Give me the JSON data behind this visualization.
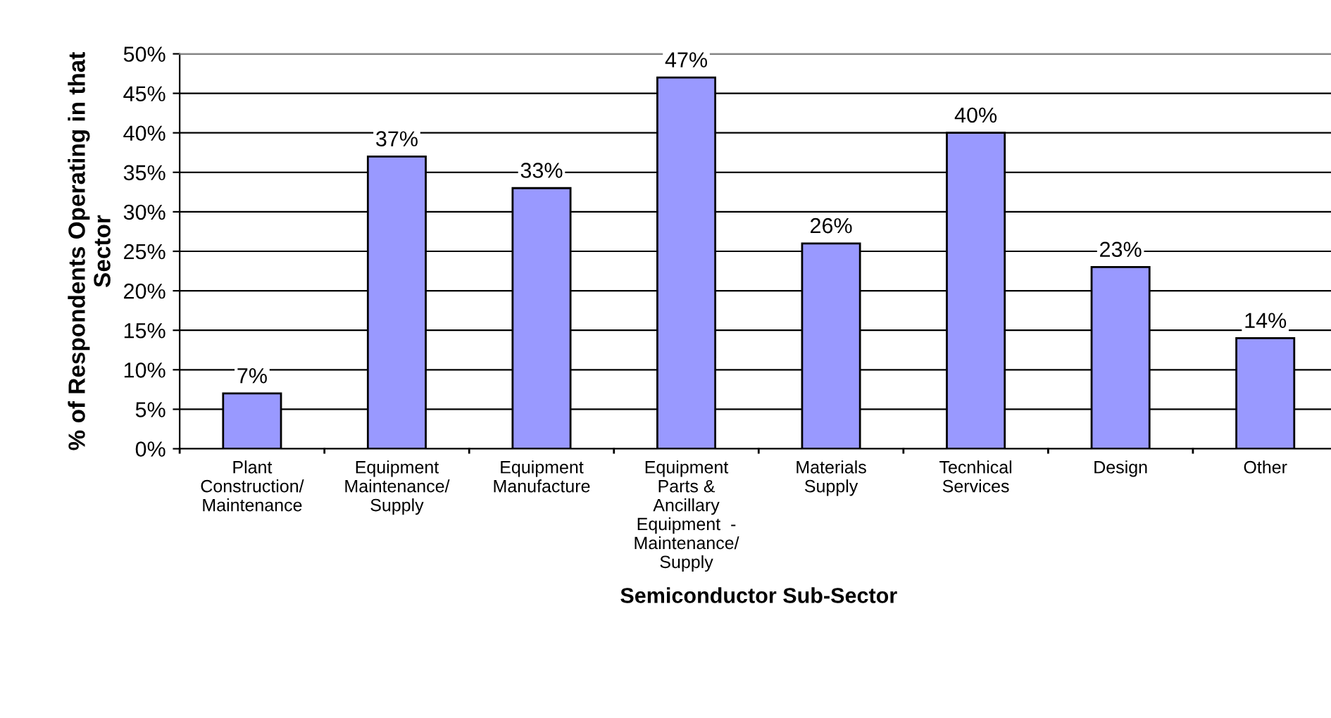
{
  "chart_data": {
    "type": "bar",
    "xlabel": "Semiconductor Sub-Sector",
    "ylabel": "% of Respondents Operating in that\nSector",
    "categories": [
      "Plant\nConstruction/\nMaintenance",
      "Equipment\nMaintenance/\nSupply",
      "Equipment\nManufacture",
      "Equipment\nParts &\nAncillary\nEquipment  -\nMaintenance/\nSupply",
      "Materials\nSupply",
      "Tecnhical\nServices",
      "Design",
      "Other"
    ],
    "values": [
      7,
      37,
      33,
      47,
      26,
      40,
      23,
      14
    ],
    "value_labels": [
      "7%",
      "37%",
      "33%",
      "47%",
      "26%",
      "40%",
      "23%",
      "14%"
    ],
    "color": "#9999ff",
    "ylim": [
      0,
      50
    ],
    "yticks": [
      {
        "value": 0,
        "label": "0%"
      },
      {
        "value": 5,
        "label": "5%"
      },
      {
        "value": 10,
        "label": "10%"
      },
      {
        "value": 15,
        "label": "15%"
      },
      {
        "value": 20,
        "label": "20%"
      },
      {
        "value": 25,
        "label": "25%"
      },
      {
        "value": 30,
        "label": "30%"
      },
      {
        "value": 35,
        "label": "35%"
      },
      {
        "value": 40,
        "label": "40%"
      },
      {
        "value": 45,
        "label": "45%"
      },
      {
        "value": 50,
        "label": "50%"
      }
    ],
    "grid": "y",
    "legend": false
  }
}
